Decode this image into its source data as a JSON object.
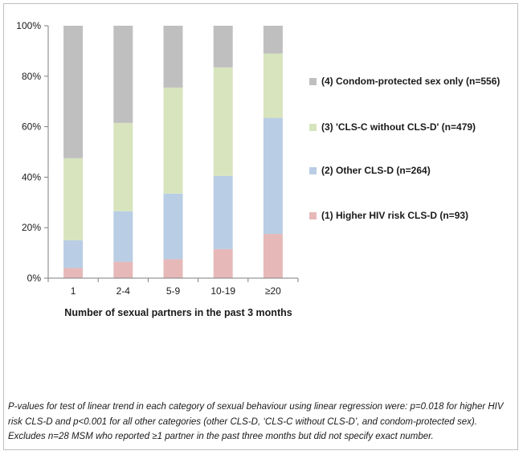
{
  "chart_data": {
    "type": "bar",
    "stacked": true,
    "percent_stacked": true,
    "categories": [
      "1",
      "2-4",
      "5-9",
      "10-19",
      "≥20"
    ],
    "series": [
      {
        "name": "(1) Higher HIV risk CLS-D (n=93)",
        "color": "#e6b9b8",
        "values": [
          4,
          6.5,
          7.5,
          11.5,
          17.5
        ]
      },
      {
        "name": "(2) Other CLS-D (n=264)",
        "color": "#b9cde5",
        "values": [
          11,
          20,
          26,
          29,
          46
        ]
      },
      {
        "name": "(3) 'CLS-C without CLS-D' (n=479)",
        "color": "#d7e4bd",
        "values": [
          32.5,
          35,
          42,
          43,
          25.5
        ]
      },
      {
        "name": "(4) Condom-protected sex only (n=556)",
        "color": "#bfbfbf",
        "values": [
          52.5,
          38.5,
          24.5,
          16.5,
          11
        ]
      }
    ],
    "title": "",
    "xlabel": "Number of sexual partners in the past 3 months",
    "ylabel": "",
    "ylim": [
      0,
      100
    ],
    "yticks": [
      "0%",
      "20%",
      "40%",
      "60%",
      "80%",
      "100%"
    ],
    "grid": false,
    "legend_position": "right"
  },
  "footnote": "P-values for test of linear trend in each category of sexual behaviour using linear regression were: p=0.018 for higher HIV risk CLS-D and p<0.001 for all other categories (other CLS-D, ‘CLS-C without CLS-D’, and condom-protected sex). Excludes n=28 MSM who reported ≥1 partner in the past three months but did not specify exact number."
}
